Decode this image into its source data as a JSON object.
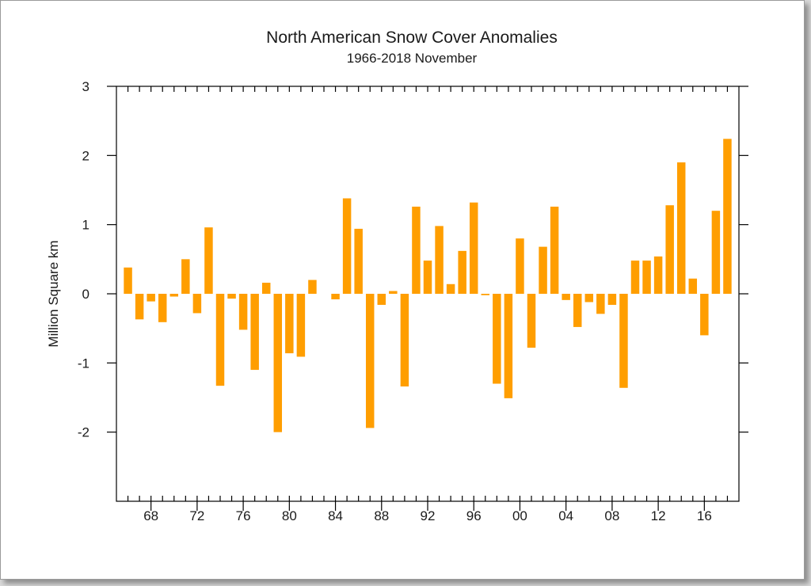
{
  "colors": {
    "bar": "#ff9e00",
    "axis": "#000000",
    "background": "#ffffff"
  },
  "chart_data": {
    "type": "bar",
    "title": "North American Snow Cover Anomalies",
    "subtitle": "1966-2018 November",
    "xlabel": "",
    "ylabel": "Million Square km",
    "ylim": [
      -3,
      3
    ],
    "xlim": [
      1965,
      2019
    ],
    "yticks": [
      3,
      2,
      1,
      0,
      -1,
      -2
    ],
    "xticks": [
      {
        "year": 1968,
        "label": "68"
      },
      {
        "year": 1972,
        "label": "72"
      },
      {
        "year": 1976,
        "label": "76"
      },
      {
        "year": 1980,
        "label": "80"
      },
      {
        "year": 1984,
        "label": "84"
      },
      {
        "year": 1988,
        "label": "88"
      },
      {
        "year": 1992,
        "label": "92"
      },
      {
        "year": 1996,
        "label": "96"
      },
      {
        "year": 2000,
        "label": "00"
      },
      {
        "year": 2004,
        "label": "04"
      },
      {
        "year": 2008,
        "label": "08"
      },
      {
        "year": 2012,
        "label": "12"
      },
      {
        "year": 2016,
        "label": "16"
      }
    ],
    "years": [
      1966,
      1967,
      1968,
      1969,
      1970,
      1971,
      1972,
      1973,
      1974,
      1975,
      1976,
      1977,
      1978,
      1979,
      1980,
      1981,
      1982,
      1983,
      1984,
      1985,
      1986,
      1987,
      1988,
      1989,
      1990,
      1991,
      1992,
      1993,
      1994,
      1995,
      1996,
      1997,
      1998,
      1999,
      2000,
      2001,
      2002,
      2003,
      2004,
      2005,
      2006,
      2007,
      2008,
      2009,
      2010,
      2011,
      2012,
      2013,
      2014,
      2015,
      2016,
      2017,
      2018
    ],
    "values": [
      0.38,
      -0.37,
      -0.11,
      -0.41,
      -0.04,
      0.5,
      -0.28,
      0.96,
      -1.33,
      -0.07,
      -0.52,
      -1.1,
      0.16,
      -2.0,
      -0.86,
      -0.91,
      0.2,
      null,
      -0.08,
      1.38,
      0.94,
      -1.94,
      -0.16,
      0.04,
      -1.34,
      1.26,
      0.48,
      0.98,
      0.14,
      0.62,
      1.32,
      -0.02,
      -1.3,
      -1.51,
      0.8,
      -0.78,
      0.68,
      1.26,
      -0.09,
      -0.48,
      -0.12,
      -0.29,
      -0.16,
      -1.36,
      0.48,
      0.48,
      0.54,
      1.28,
      1.9,
      0.22,
      -0.6,
      1.2,
      2.24
    ]
  }
}
